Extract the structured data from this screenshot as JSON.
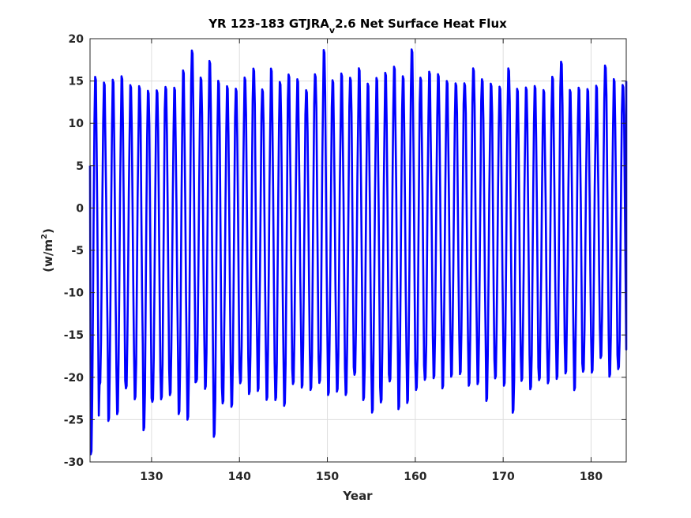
{
  "chart_data": {
    "type": "line",
    "title": {
      "prefix": "YR 123-183 GTJRA",
      "subscript": "v",
      "suffix": "2.6 Net Surface Heat Flux"
    },
    "xlabel": "Year",
    "ylabel": {
      "main": "(w/m",
      "superscript": "2",
      "end": ")"
    },
    "xlim": [
      123,
      184
    ],
    "ylim": [
      -30,
      20
    ],
    "xticks": [
      130,
      140,
      150,
      160,
      170,
      180
    ],
    "xtick_labels": [
      "130",
      "140",
      "150",
      "160",
      "170",
      "180"
    ],
    "yticks": [
      -30,
      -25,
      -20,
      -15,
      -10,
      -5,
      0,
      5,
      10,
      15,
      20
    ],
    "ytick_labels": [
      "-30",
      "-25",
      "-20",
      "-15",
      "-10",
      "-5",
      "0",
      "5",
      "10",
      "15",
      "20"
    ],
    "grid": true,
    "series_color": "#0000ff",
    "series": [
      {
        "annual_max": [
          16.1,
          15.3,
          15.7,
          16.1,
          15.0,
          14.9,
          14.4,
          14.4,
          14.8,
          14.7,
          16.8,
          19.2,
          15.9,
          17.9,
          15.6,
          14.9,
          14.6,
          15.9,
          17.0,
          14.5,
          17.0,
          15.4,
          16.3,
          15.7,
          14.4,
          16.3,
          19.2,
          15.6,
          16.4,
          15.9,
          17.0,
          15.2,
          15.9,
          16.5,
          17.2,
          16.1,
          19.3,
          15.9,
          16.6,
          16.3,
          15.5,
          15.2,
          15.2,
          17.0,
          15.7,
          15.2,
          14.8,
          17.0,
          14.6,
          14.7,
          14.9,
          14.4,
          16.0,
          17.8,
          14.4,
          14.7,
          14.5,
          14.9,
          17.3,
          15.7,
          15.0
        ],
        "annual_min": [
          -29.7,
          -21.4,
          -25.7,
          -24.9,
          -21.8,
          -23.1,
          -26.8,
          -23.4,
          -23.1,
          -22.6,
          -24.9,
          -25.6,
          -21.0,
          -21.9,
          -27.6,
          -23.6,
          -24.0,
          -21.2,
          -22.5,
          -22.1,
          -23.2,
          -23.2,
          -23.9,
          -21.3,
          -21.7,
          -22.0,
          -21.2,
          -22.6,
          -22.2,
          -22.6,
          -20.2,
          -23.2,
          -24.7,
          -23.5,
          -21.0,
          -24.3,
          -23.6,
          -22.0,
          -20.8,
          -20.6,
          -21.8,
          -20.4,
          -20.1,
          -21.5,
          -21.3,
          -23.3,
          -20.6,
          -21.5,
          -24.7,
          -20.9,
          -21.9,
          -20.8,
          -21.2,
          -20.7,
          -20.0,
          -22.0,
          -19.8,
          -19.9,
          -18.2,
          -20.4,
          -19.5
        ],
        "end_value": 15.0
      }
    ]
  }
}
